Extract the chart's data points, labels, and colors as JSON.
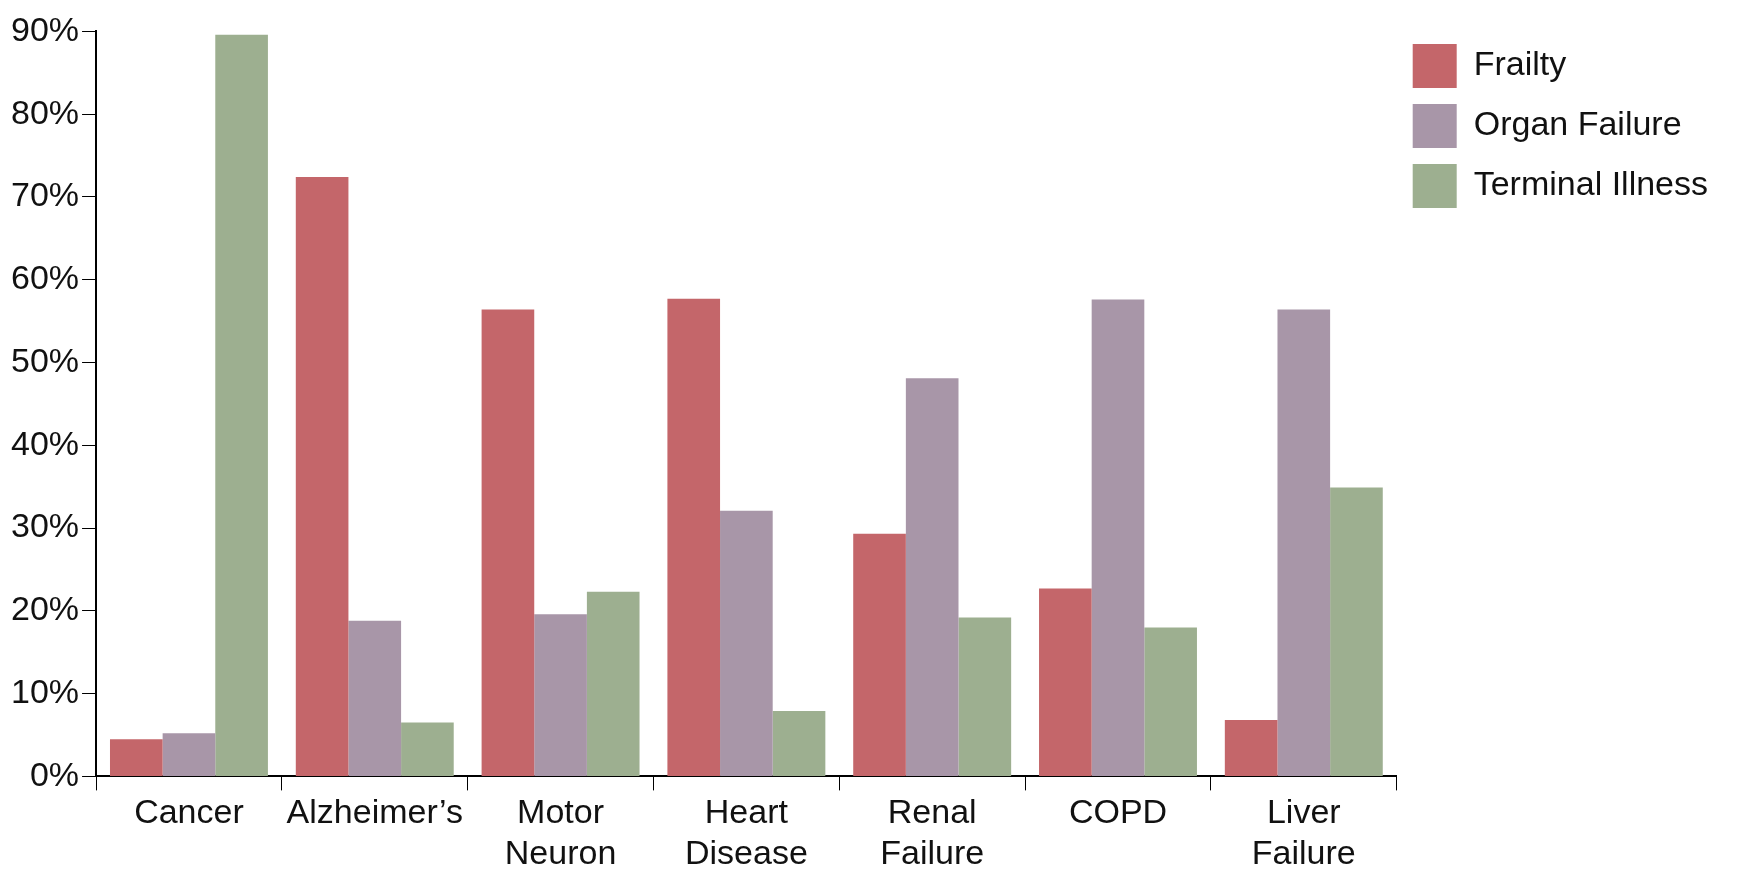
{
  "chart_data": {
    "type": "bar",
    "categories": [
      "Cancer",
      "Alzheimer’s",
      "Motor Neuron",
      "Heart Disease",
      "Renal Failure",
      "COPD",
      "Liver Failure"
    ],
    "series": [
      {
        "name": "Frailty",
        "color": "#c4666a",
        "values": [
          4.5,
          72.4,
          56.4,
          57.7,
          29.3,
          22.7,
          6.8
        ]
      },
      {
        "name": "Organ Failure",
        "color": "#a896a8",
        "values": [
          5.2,
          18.8,
          19.6,
          32.1,
          48.1,
          57.6,
          56.4
        ]
      },
      {
        "name": "Terminal Illness",
        "color": "#9daf90",
        "values": [
          89.6,
          6.5,
          22.3,
          7.9,
          19.2,
          18.0,
          34.9
        ]
      }
    ],
    "ylim": [
      0,
      90
    ],
    "yticks": [
      {
        "value": 0,
        "label": "0%"
      },
      {
        "value": 10,
        "label": "10%"
      },
      {
        "value": 20,
        "label": "20%"
      },
      {
        "value": 30,
        "label": "30%"
      },
      {
        "value": 40,
        "label": "40%"
      },
      {
        "value": 50,
        "label": "50%"
      },
      {
        "value": 60,
        "label": "60%"
      },
      {
        "value": 70,
        "label": "70%"
      },
      {
        "value": 80,
        "label": "80%"
      },
      {
        "value": 90,
        "label": "90%"
      }
    ],
    "grid": false,
    "legend": "top right"
  }
}
